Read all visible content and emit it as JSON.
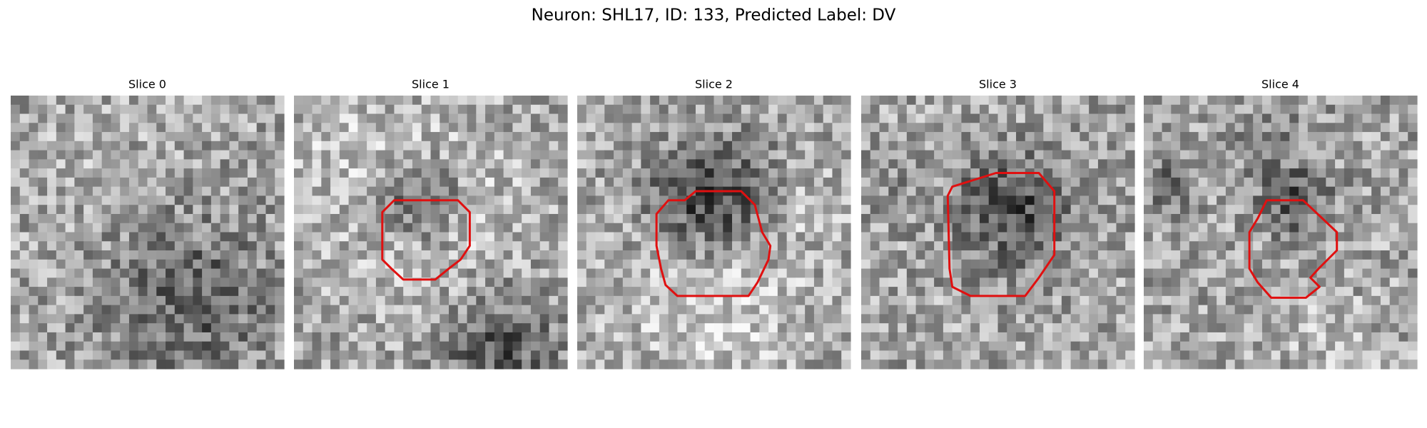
{
  "title": "Neuron: SHL17, ID: 133, Predicted Label: DV",
  "panels": [
    {
      "title": "Slice 0"
    },
    {
      "title": "Slice 1"
    },
    {
      "title": "Slice 2"
    },
    {
      "title": "Slice 3"
    },
    {
      "title": "Slice 4"
    }
  ]
}
